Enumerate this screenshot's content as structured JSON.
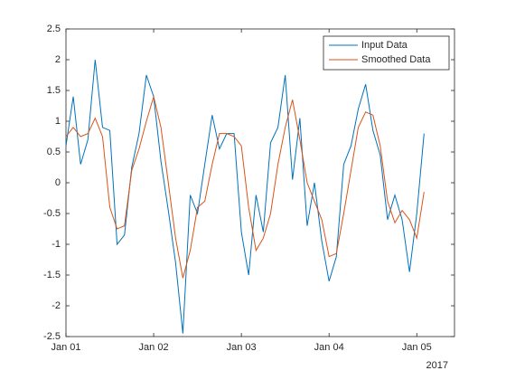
{
  "chart_data": {
    "type": "line",
    "x": [
      0,
      0.083,
      0.167,
      0.25,
      0.333,
      0.417,
      0.5,
      0.583,
      0.667,
      0.75,
      0.833,
      0.917,
      1,
      1.083,
      1.167,
      1.25,
      1.333,
      1.417,
      1.5,
      1.583,
      1.667,
      1.75,
      1.833,
      1.917,
      2,
      2.083,
      2.167,
      2.25,
      2.333,
      2.417,
      2.5,
      2.583,
      2.667,
      2.75,
      2.833,
      2.917,
      3,
      3.083,
      3.167,
      3.25,
      3.333,
      3.417,
      3.5,
      3.583,
      3.667,
      3.75,
      3.833,
      3.917,
      4,
      4.083
    ],
    "series": [
      {
        "name": "Input Data",
        "color": "#0072BD",
        "values": [
          0.6,
          1.4,
          0.3,
          0.7,
          2.0,
          0.9,
          0.85,
          -1.0,
          -0.85,
          0.25,
          0.8,
          1.75,
          1.4,
          0.35,
          -0.45,
          -1.3,
          -2.45,
          -0.2,
          -0.5,
          0.3,
          1.1,
          0.55,
          0.8,
          0.8,
          -0.8,
          -1.5,
          -0.2,
          -0.8,
          0.65,
          0.9,
          1.75,
          0.05,
          1.05,
          -0.7,
          0.0,
          -0.95,
          -1.6,
          -1.2,
          0.3,
          0.6,
          1.2,
          1.6,
          0.85,
          0.45,
          -0.6,
          -0.2,
          -0.6,
          -1.45,
          -0.5,
          0.8
        ]
      },
      {
        "name": "Smoothed Data",
        "color": "#D95319",
        "values": [
          0.75,
          0.9,
          0.75,
          0.8,
          1.05,
          0.75,
          -0.4,
          -0.75,
          -0.7,
          0.2,
          0.55,
          1.0,
          1.4,
          0.9,
          0.0,
          -0.9,
          -1.55,
          -1.1,
          -0.4,
          -0.3,
          0.3,
          0.8,
          0.8,
          0.75,
          0.6,
          -0.4,
          -1.1,
          -0.9,
          -0.5,
          0.3,
          0.9,
          1.35,
          0.7,
          0.0,
          -0.3,
          -0.6,
          -1.2,
          -1.15,
          -0.5,
          0.2,
          0.9,
          1.15,
          1.1,
          0.6,
          -0.3,
          -0.65,
          -0.45,
          -0.6,
          -0.9,
          -0.15
        ]
      }
    ],
    "xlim": [
      0,
      4.43
    ],
    "xticks": [
      {
        "value": 0,
        "label": "Jan 01"
      },
      {
        "value": 1,
        "label": "Jan 02"
      },
      {
        "value": 2,
        "label": "Jan 03"
      },
      {
        "value": 3,
        "label": "Jan 04"
      },
      {
        "value": 4,
        "label": "Jan 05"
      }
    ],
    "x_secondary_label": "2017",
    "ylim": [
      -2.5,
      2.5
    ],
    "yticks": [
      -2.5,
      -2,
      -1.5,
      -1,
      -0.5,
      0,
      0.5,
      1,
      1.5,
      2,
      2.5
    ],
    "legend": "northeast"
  }
}
